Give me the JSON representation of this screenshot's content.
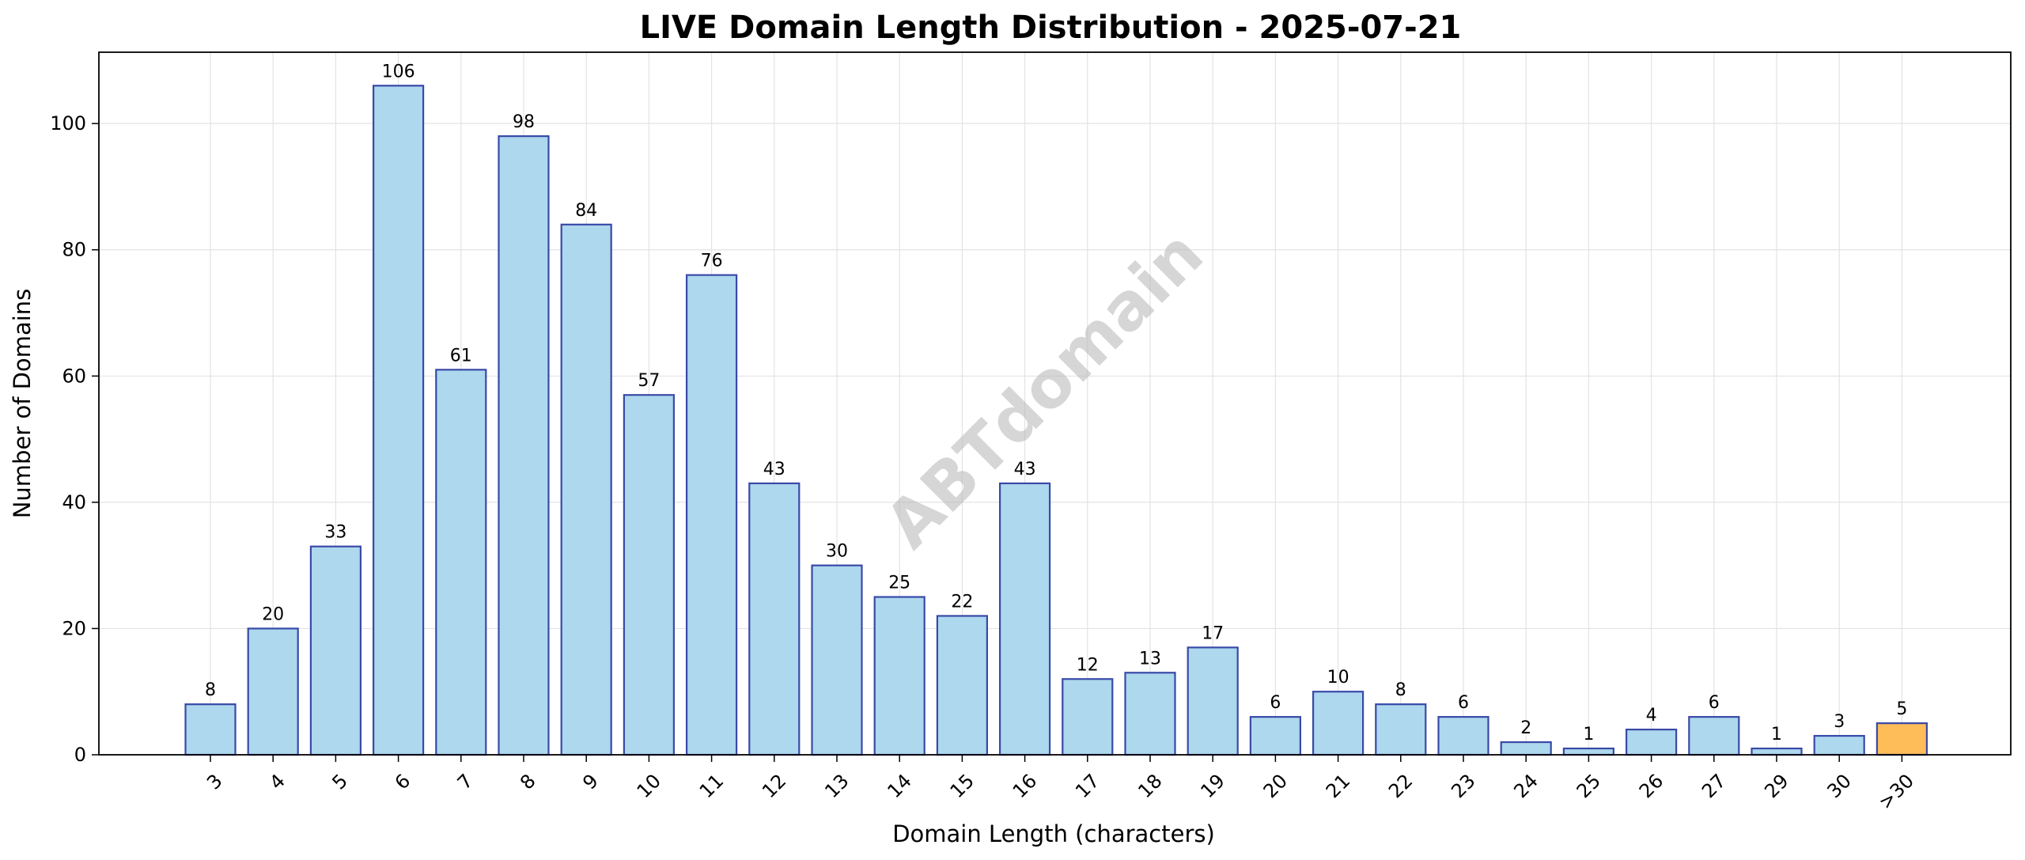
{
  "chart_data": {
    "type": "bar",
    "title": "LIVE Domain Length Distribution - 2025-07-21",
    "xlabel": "Domain Length (characters)",
    "ylabel": "Number of Domains",
    "categories": [
      "3",
      "4",
      "5",
      "6",
      "7",
      "8",
      "9",
      "10",
      "11",
      "12",
      "13",
      "14",
      "15",
      "16",
      "17",
      "18",
      "19",
      "20",
      "21",
      "22",
      "23",
      "24",
      "25",
      "26",
      "27",
      "29",
      "30",
      ">30"
    ],
    "values": [
      8,
      20,
      33,
      106,
      61,
      98,
      84,
      57,
      76,
      43,
      30,
      25,
      22,
      43,
      12,
      13,
      17,
      6,
      10,
      8,
      6,
      2,
      1,
      4,
      6,
      1,
      3,
      5
    ],
    "ylim": [
      0,
      111.3
    ],
    "yticks": [
      0,
      20,
      40,
      60,
      80,
      100
    ],
    "grid": true,
    "colors": {
      "bar_fill": "#add8ed",
      "bar_edge": "#3a49a8",
      "highlight_fill": "#ffbd59",
      "highlight_category": ">30",
      "grid": "#e3e3e3"
    },
    "watermark": "ABTdomain"
  }
}
